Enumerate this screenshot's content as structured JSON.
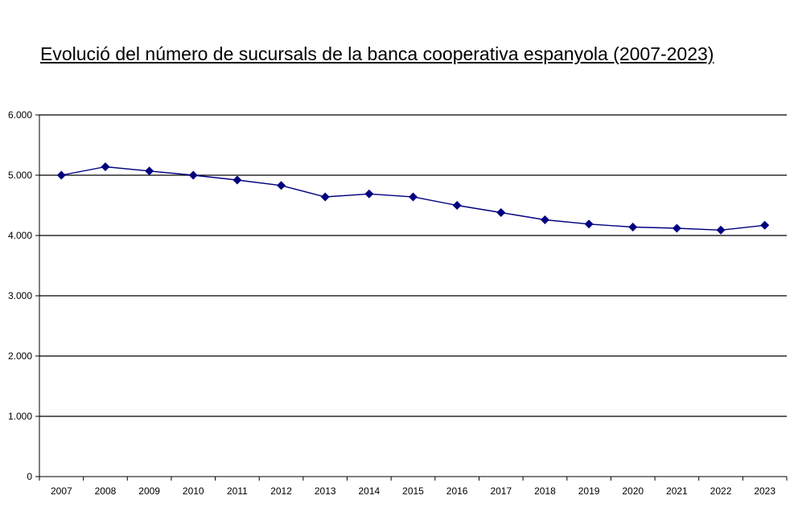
{
  "chart_data": {
    "type": "line",
    "title": "Evolució del número de sucursals de la banca cooperativa espanyola (2007-2023)",
    "xlabel": "",
    "ylabel": "",
    "categories": [
      "2007",
      "2008",
      "2009",
      "2010",
      "2011",
      "2012",
      "2013",
      "2014",
      "2015",
      "2016",
      "2017",
      "2018",
      "2019",
      "2020",
      "2021",
      "2022",
      "2023"
    ],
    "series": [
      {
        "values": [
          5000,
          5140,
          5070,
          5000,
          4920,
          4830,
          4640,
          4690,
          4640,
          4500,
          4380,
          4260,
          4190,
          4140,
          4120,
          4090,
          4170
        ]
      }
    ],
    "ylim": [
      0,
      6000
    ],
    "yticks": [
      0,
      1000,
      2000,
      3000,
      4000,
      5000,
      6000
    ],
    "ytick_labels": [
      "0",
      "1.000",
      "2.000",
      "3.000",
      "4.000",
      "5.000",
      "6.000"
    ],
    "grid": "horizontal",
    "legend": "none",
    "line_color": "#000080",
    "marker": "diamond",
    "grid_color": "#000000"
  }
}
